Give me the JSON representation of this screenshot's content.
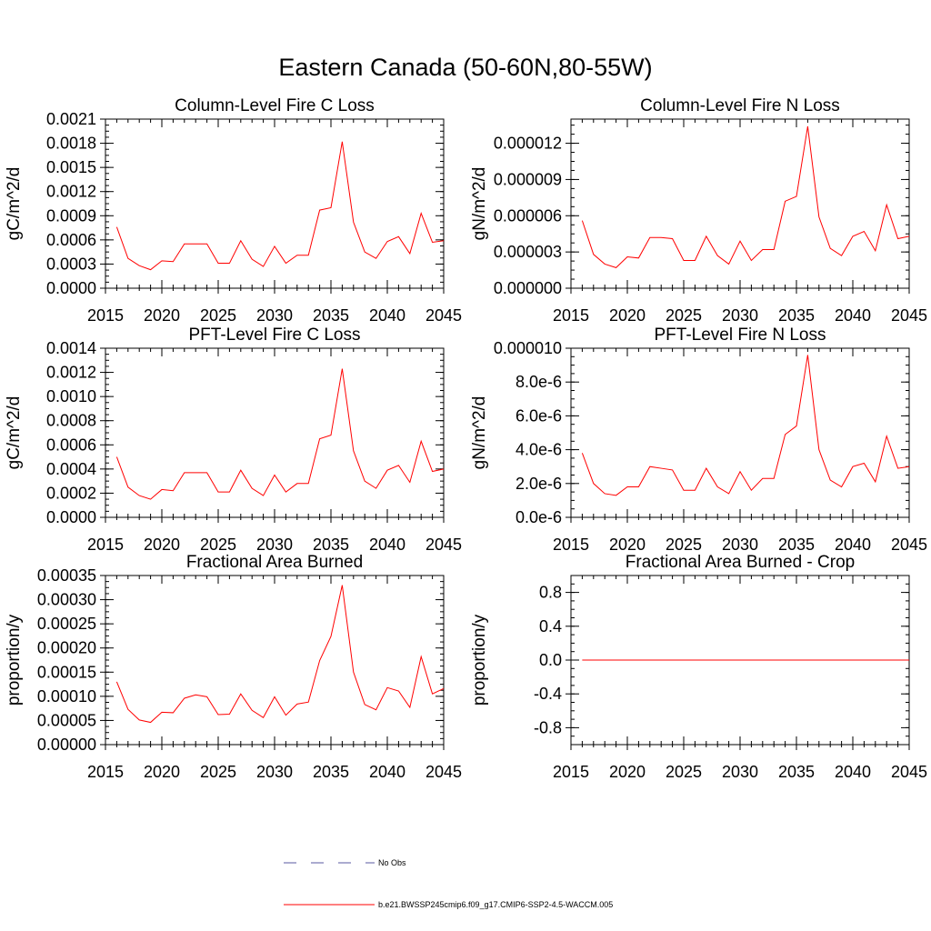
{
  "figure": {
    "title": "Eastern Canada (50-60N,80-55W)"
  },
  "legend": [
    {
      "label": "No Obs",
      "color": "#5a5aa0",
      "style": "dashed"
    },
    {
      "label": "b.e21.BWSSP245cmip6.f09_g17.CMIP6-SSP2-4.5-WACCM.005",
      "color": "#ff0000",
      "style": "solid"
    }
  ],
  "chart_data": [
    {
      "type": "line",
      "title": "Column-Level Fire C Loss",
      "xlabel": "",
      "ylabel": "gC/m^2/d",
      "xlim": [
        2015,
        2045
      ],
      "ylim": [
        0,
        0.0021
      ],
      "xticks": [
        2015,
        2020,
        2025,
        2030,
        2035,
        2040,
        2045
      ],
      "xtick_labels": [
        "2015",
        "2020",
        "2025",
        "2030",
        "2035",
        "2040",
        "2045"
      ],
      "yticks": [
        0,
        0.0003,
        0.0006,
        0.0009,
        0.0012,
        0.0015,
        0.0018,
        0.0021
      ],
      "ytick_labels": [
        "0.0000",
        "0.0003",
        "0.0006",
        "0.0009",
        "0.0012",
        "0.0015",
        "0.0018",
        "0.0021"
      ],
      "series": [
        {
          "name": "b.e21.BWSSP245cmip6.f09_g17.CMIP6-SSP2-4.5-WACCM.005",
          "color": "#ff0000",
          "x": [
            2016,
            2017,
            2018,
            2019,
            2020,
            2021,
            2022,
            2023,
            2024,
            2025,
            2026,
            2027,
            2028,
            2029,
            2030,
            2031,
            2032,
            2033,
            2034,
            2035,
            2036,
            2037,
            2038,
            2039,
            2040,
            2041,
            2042,
            2043,
            2044,
            2045
          ],
          "values": [
            0.00076,
            0.00037,
            0.00028,
            0.00023,
            0.00034,
            0.00033,
            0.00055,
            0.00055,
            0.00055,
            0.00031,
            0.00031,
            0.00059,
            0.00036,
            0.00027,
            0.00052,
            0.00031,
            0.00041,
            0.00041,
            0.00097,
            0.001,
            0.00182,
            0.00082,
            0.00045,
            0.00037,
            0.00058,
            0.00064,
            0.00043,
            0.00093,
            0.00057,
            0.00059
          ]
        }
      ]
    },
    {
      "type": "line",
      "title": "Column-Level Fire N Loss",
      "xlabel": "",
      "ylabel": "gN/m^2/d",
      "xlim": [
        2015,
        2045
      ],
      "ylim": [
        0,
        1.4e-05
      ],
      "xticks": [
        2015,
        2020,
        2025,
        2030,
        2035,
        2040,
        2045
      ],
      "xtick_labels": [
        "2015",
        "2020",
        "2025",
        "2030",
        "2035",
        "2040",
        "2045"
      ],
      "yticks": [
        0,
        3e-06,
        6e-06,
        9e-06,
        1.2e-05
      ],
      "ytick_labels": [
        "0.000000",
        "0.000003",
        "0.000006",
        "0.000009",
        "0.000012"
      ],
      "series": [
        {
          "name": "b.e21.BWSSP245cmip6.f09_g17.CMIP6-SSP2-4.5-WACCM.005",
          "color": "#ff0000",
          "x": [
            2016,
            2017,
            2018,
            2019,
            2020,
            2021,
            2022,
            2023,
            2024,
            2025,
            2026,
            2027,
            2028,
            2029,
            2030,
            2031,
            2032,
            2033,
            2034,
            2035,
            2036,
            2037,
            2038,
            2039,
            2040,
            2041,
            2042,
            2043,
            2044,
            2045
          ],
          "values": [
            5.6e-06,
            2.8e-06,
            2e-06,
            1.7e-06,
            2.6e-06,
            2.5e-06,
            4.2e-06,
            4.2e-06,
            4.1e-06,
            2.3e-06,
            2.3e-06,
            4.3e-06,
            2.7e-06,
            2e-06,
            3.9e-06,
            2.3e-06,
            3.2e-06,
            3.2e-06,
            7.2e-06,
            7.6e-06,
            1.34e-05,
            5.9e-06,
            3.3e-06,
            2.7e-06,
            4.3e-06,
            4.7e-06,
            3.1e-06,
            6.9e-06,
            4.1e-06,
            4.3e-06
          ]
        }
      ]
    },
    {
      "type": "line",
      "title": "PFT-Level Fire C Loss",
      "xlabel": "",
      "ylabel": "gC/m^2/d",
      "xlim": [
        2015,
        2045
      ],
      "ylim": [
        0,
        0.0014
      ],
      "xticks": [
        2015,
        2020,
        2025,
        2030,
        2035,
        2040,
        2045
      ],
      "xtick_labels": [
        "2015",
        "2020",
        "2025",
        "2030",
        "2035",
        "2040",
        "2045"
      ],
      "yticks": [
        0,
        0.0002,
        0.0004,
        0.0006,
        0.0008,
        0.001,
        0.0012,
        0.0014
      ],
      "ytick_labels": [
        "0.0000",
        "0.0002",
        "0.0004",
        "0.0006",
        "0.0008",
        "0.0010",
        "0.0012",
        "0.0014"
      ],
      "series": [
        {
          "name": "b.e21.BWSSP245cmip6.f09_g17.CMIP6-SSP2-4.5-WACCM.005",
          "color": "#ff0000",
          "x": [
            2016,
            2017,
            2018,
            2019,
            2020,
            2021,
            2022,
            2023,
            2024,
            2025,
            2026,
            2027,
            2028,
            2029,
            2030,
            2031,
            2032,
            2033,
            2034,
            2035,
            2036,
            2037,
            2038,
            2039,
            2040,
            2041,
            2042,
            2043,
            2044,
            2045
          ],
          "values": [
            0.0005,
            0.00025,
            0.00018,
            0.00015,
            0.00023,
            0.00022,
            0.00037,
            0.00037,
            0.00037,
            0.00021,
            0.00021,
            0.00039,
            0.00024,
            0.00018,
            0.00035,
            0.00021,
            0.00028,
            0.00028,
            0.00065,
            0.00068,
            0.00123,
            0.00055,
            0.0003,
            0.00024,
            0.00039,
            0.00043,
            0.00029,
            0.00063,
            0.00038,
            0.0004
          ]
        }
      ]
    },
    {
      "type": "line",
      "title": "PFT-Level Fire N Loss",
      "xlabel": "",
      "ylabel": "gN/m^2/d",
      "xlim": [
        2015,
        2045
      ],
      "ylim": [
        0,
        1e-05
      ],
      "xticks": [
        2015,
        2020,
        2025,
        2030,
        2035,
        2040,
        2045
      ],
      "xtick_labels": [
        "2015",
        "2020",
        "2025",
        "2030",
        "2035",
        "2040",
        "2045"
      ],
      "yticks": [
        0,
        2e-06,
        4e-06,
        6e-06,
        8e-06,
        1e-05
      ],
      "ytick_labels": [
        "0.0e-6",
        "2.0e-6",
        "4.0e-6",
        "6.0e-6",
        "8.0e-6",
        "0.000010"
      ],
      "series": [
        {
          "name": "b.e21.BWSSP245cmip6.f09_g17.CMIP6-SSP2-4.5-WACCM.005",
          "color": "#ff0000",
          "x": [
            2016,
            2017,
            2018,
            2019,
            2020,
            2021,
            2022,
            2023,
            2024,
            2025,
            2026,
            2027,
            2028,
            2029,
            2030,
            2031,
            2032,
            2033,
            2034,
            2035,
            2036,
            2037,
            2038,
            2039,
            2040,
            2041,
            2042,
            2043,
            2044,
            2045
          ],
          "values": [
            3.8e-06,
            2e-06,
            1.4e-06,
            1.3e-06,
            1.8e-06,
            1.8e-06,
            3e-06,
            2.9e-06,
            2.8e-06,
            1.6e-06,
            1.6e-06,
            2.9e-06,
            1.8e-06,
            1.4e-06,
            2.7e-06,
            1.6e-06,
            2.3e-06,
            2.3e-06,
            4.9e-06,
            5.4e-06,
            9.6e-06,
            4e-06,
            2.2e-06,
            1.8e-06,
            3e-06,
            3.2e-06,
            2.1e-06,
            4.8e-06,
            2.9e-06,
            3e-06
          ]
        }
      ]
    },
    {
      "type": "line",
      "title": "Fractional Area Burned",
      "xlabel": "",
      "ylabel": "proportion/y",
      "xlim": [
        2015,
        2045
      ],
      "ylim": [
        0,
        0.00035
      ],
      "xticks": [
        2015,
        2020,
        2025,
        2030,
        2035,
        2040,
        2045
      ],
      "xtick_labels": [
        "2015",
        "2020",
        "2025",
        "2030",
        "2035",
        "2040",
        "2045"
      ],
      "yticks": [
        0,
        5e-05,
        0.0001,
        0.00015,
        0.0002,
        0.00025,
        0.0003,
        0.00035
      ],
      "ytick_labels": [
        "0.00000",
        "0.00005",
        "0.00010",
        "0.00015",
        "0.00020",
        "0.00025",
        "0.00030",
        "0.00035"
      ],
      "series": [
        {
          "name": "b.e21.BWSSP245cmip6.f09_g17.CMIP6-SSP2-4.5-WACCM.005",
          "color": "#ff0000",
          "x": [
            2016,
            2017,
            2018,
            2019,
            2020,
            2021,
            2022,
            2023,
            2024,
            2025,
            2026,
            2027,
            2028,
            2029,
            2030,
            2031,
            2032,
            2033,
            2034,
            2035,
            2036,
            2037,
            2038,
            2039,
            2040,
            2041,
            2042,
            2043,
            2044,
            2045
          ],
          "values": [
            0.00013,
            7.3e-05,
            5.1e-05,
            4.6e-05,
            6.7e-05,
            6.6e-05,
            9.6e-05,
            0.000103,
            9.9e-05,
            6.2e-05,
            6.3e-05,
            0.000105,
            7.1e-05,
            5.6e-05,
            9.9e-05,
            6.1e-05,
            8.4e-05,
            8.8e-05,
            0.000174,
            0.000224,
            0.00033,
            0.00015,
            8.3e-05,
            7.2e-05,
            0.000118,
            0.000111,
            7.7e-05,
            0.000182,
            0.000105,
            0.000116
          ]
        }
      ]
    },
    {
      "type": "line",
      "title": "Fractional Area Burned - Crop",
      "xlabel": "",
      "ylabel": "proportion/y",
      "xlim": [
        2015,
        2045
      ],
      "ylim": [
        -1.0,
        1.0
      ],
      "xticks": [
        2015,
        2020,
        2025,
        2030,
        2035,
        2040,
        2045
      ],
      "xtick_labels": [
        "2015",
        "2020",
        "2025",
        "2030",
        "2035",
        "2040",
        "2045"
      ],
      "yticks": [
        -0.8,
        -0.4,
        0.0,
        0.4,
        0.8
      ],
      "ytick_labels": [
        "-0.8",
        "-0.4",
        "0.0",
        "0.4",
        "0.8"
      ],
      "series": [
        {
          "name": "b.e21.BWSSP245cmip6.f09_g17.CMIP6-SSP2-4.5-WACCM.005",
          "color": "#ff0000",
          "x": [
            2016,
            2017,
            2018,
            2019,
            2020,
            2021,
            2022,
            2023,
            2024,
            2025,
            2026,
            2027,
            2028,
            2029,
            2030,
            2031,
            2032,
            2033,
            2034,
            2035,
            2036,
            2037,
            2038,
            2039,
            2040,
            2041,
            2042,
            2043,
            2044,
            2045
          ],
          "values": [
            0,
            0,
            0,
            0,
            0,
            0,
            0,
            0,
            0,
            0,
            0,
            0,
            0,
            0,
            0,
            0,
            0,
            0,
            0,
            0,
            0,
            0,
            0,
            0,
            0,
            0,
            0,
            0,
            0,
            0
          ]
        }
      ]
    }
  ]
}
